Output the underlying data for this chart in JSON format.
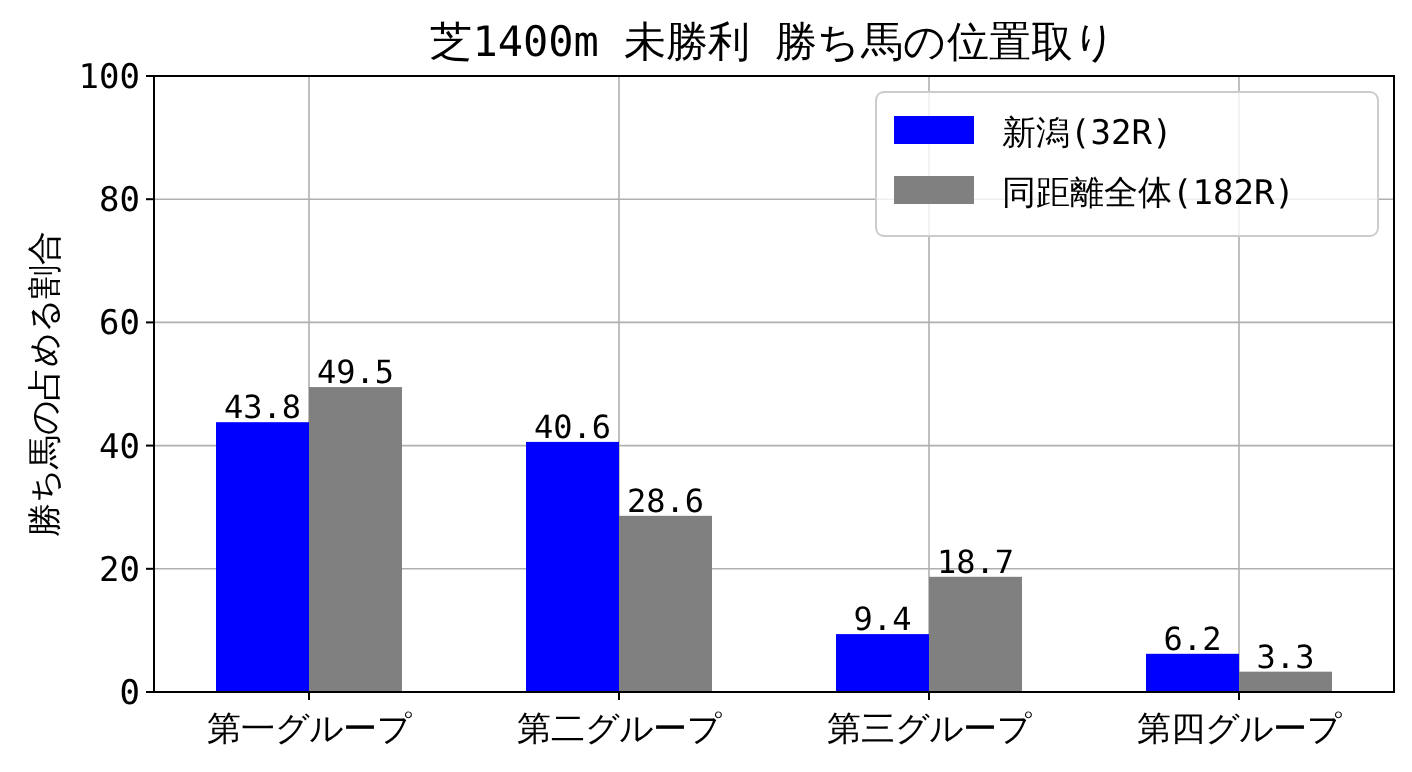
{
  "chart_data": {
    "type": "bar",
    "title": "芝1400m 未勝利 勝ち馬の位置取り",
    "ylabel": "勝ち馬の占める割合",
    "categories": [
      "第一グループ",
      "第二グループ",
      "第三グループ",
      "第四グループ"
    ],
    "series": [
      {
        "name": "新潟(32R)",
        "color": "#0000ff",
        "values": [
          43.8,
          40.6,
          9.4,
          6.2
        ]
      },
      {
        "name": "同距離全体(182R)",
        "color": "#808080",
        "values": [
          49.5,
          28.6,
          18.7,
          3.3
        ]
      }
    ],
    "ylim": [
      0,
      100
    ],
    "yticks": [
      0,
      20,
      40,
      60,
      80,
      100
    ],
    "grid": true,
    "legend": "top right",
    "data_labels": true
  }
}
